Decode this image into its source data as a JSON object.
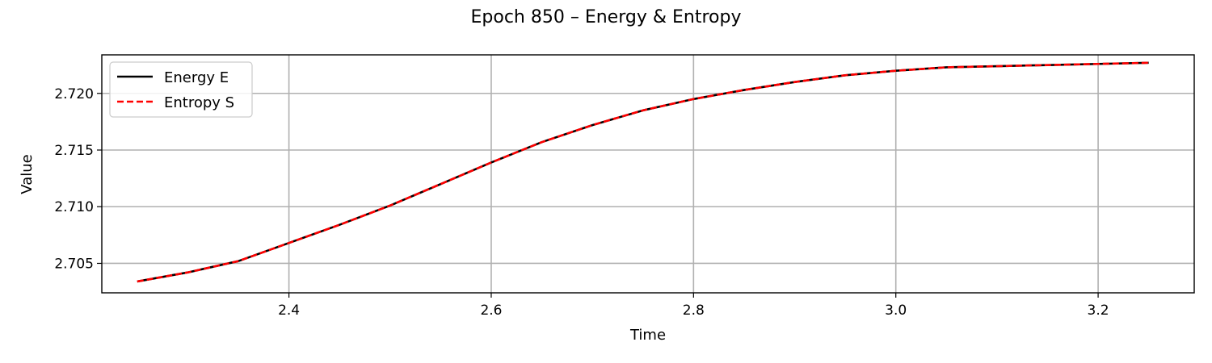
{
  "chart_data": {
    "type": "line",
    "title": "Epoch 850 – Energy & Entropy",
    "xlabel": "Time",
    "ylabel": "Value",
    "xlim": [
      2.215,
      3.295
    ],
    "ylim": [
      2.7024,
      2.7234
    ],
    "xticks": [
      2.4,
      2.6,
      2.8,
      3.0,
      3.2
    ],
    "xtick_labels": [
      "2.4",
      "2.6",
      "2.8",
      "3.0",
      "3.2"
    ],
    "yticks": [
      2.705,
      2.71,
      2.715,
      2.72
    ],
    "ytick_labels": [
      "2.705",
      "2.710",
      "2.715",
      "2.720"
    ],
    "grid": true,
    "legend_position": "top-left",
    "x": [
      2.25,
      2.3,
      2.35,
      2.4,
      2.45,
      2.5,
      2.55,
      2.6,
      2.65,
      2.7,
      2.75,
      2.8,
      2.85,
      2.9,
      2.95,
      3.0,
      3.05,
      3.1,
      3.15,
      3.2,
      3.25
    ],
    "series": [
      {
        "name": "Energy E",
        "color": "#000000",
        "style": "solid",
        "values": [
          2.7034,
          2.7042,
          2.7052,
          2.7068,
          2.7084,
          2.7101,
          2.712,
          2.7139,
          2.7157,
          2.7172,
          2.7185,
          2.7195,
          2.7203,
          2.721,
          2.7216,
          2.722,
          2.7223,
          2.7224,
          2.7225,
          2.7226,
          2.7227
        ]
      },
      {
        "name": "Entropy S",
        "color": "#ff0000",
        "style": "dashed",
        "values": [
          2.7034,
          2.7042,
          2.7052,
          2.7068,
          2.7084,
          2.7101,
          2.712,
          2.7139,
          2.7157,
          2.7172,
          2.7185,
          2.7195,
          2.7203,
          2.721,
          2.7216,
          2.722,
          2.7223,
          2.7224,
          2.7225,
          2.7226,
          2.7227
        ]
      }
    ]
  }
}
